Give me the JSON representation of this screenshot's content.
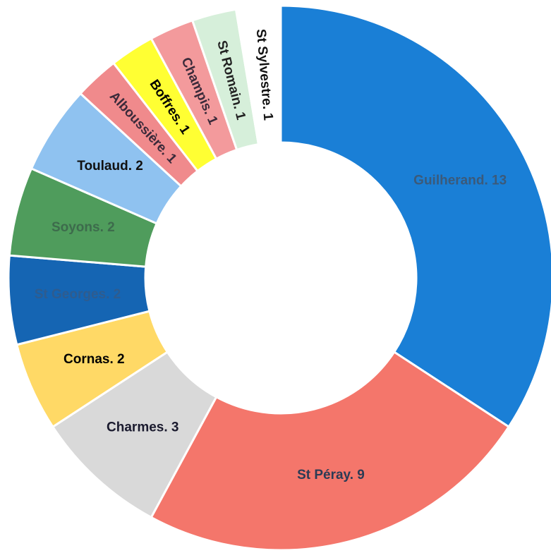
{
  "chart_data": {
    "type": "donut",
    "value_labels": [
      "Guilherand. 13",
      "St Péray. 9",
      "Charmes. 3",
      "Cornas. 2",
      "St Georges. 2",
      "Soyons. 2",
      "Toulaud. 2",
      "Alboussière. 1",
      "Boffres. 1",
      "Champis. 1",
      "St Romain. 1",
      "St Sylvestre. 1"
    ],
    "values": [
      13,
      9,
      3,
      2,
      2,
      2,
      2,
      1,
      1,
      1,
      1,
      1
    ],
    "colors": [
      "#1a7fd6",
      "#f4766b",
      "#d9d9d9",
      "#ffd966",
      "#1565b3",
      "#4f9c5c",
      "#8fc2f0",
      "#f08a8c",
      "#ffff33",
      "#f39a9c",
      "#d6efda",
      "#ffffff"
    ],
    "label_colors": [
      "#3b5a7a",
      "#2b3b55",
      "#1a1a2e",
      "#000000",
      "#2e5c8f",
      "#3d6b4c",
      "#111111",
      "#3b2a3a",
      "#000000",
      "#3b2a3a",
      "#222222",
      "#111111"
    ]
  }
}
